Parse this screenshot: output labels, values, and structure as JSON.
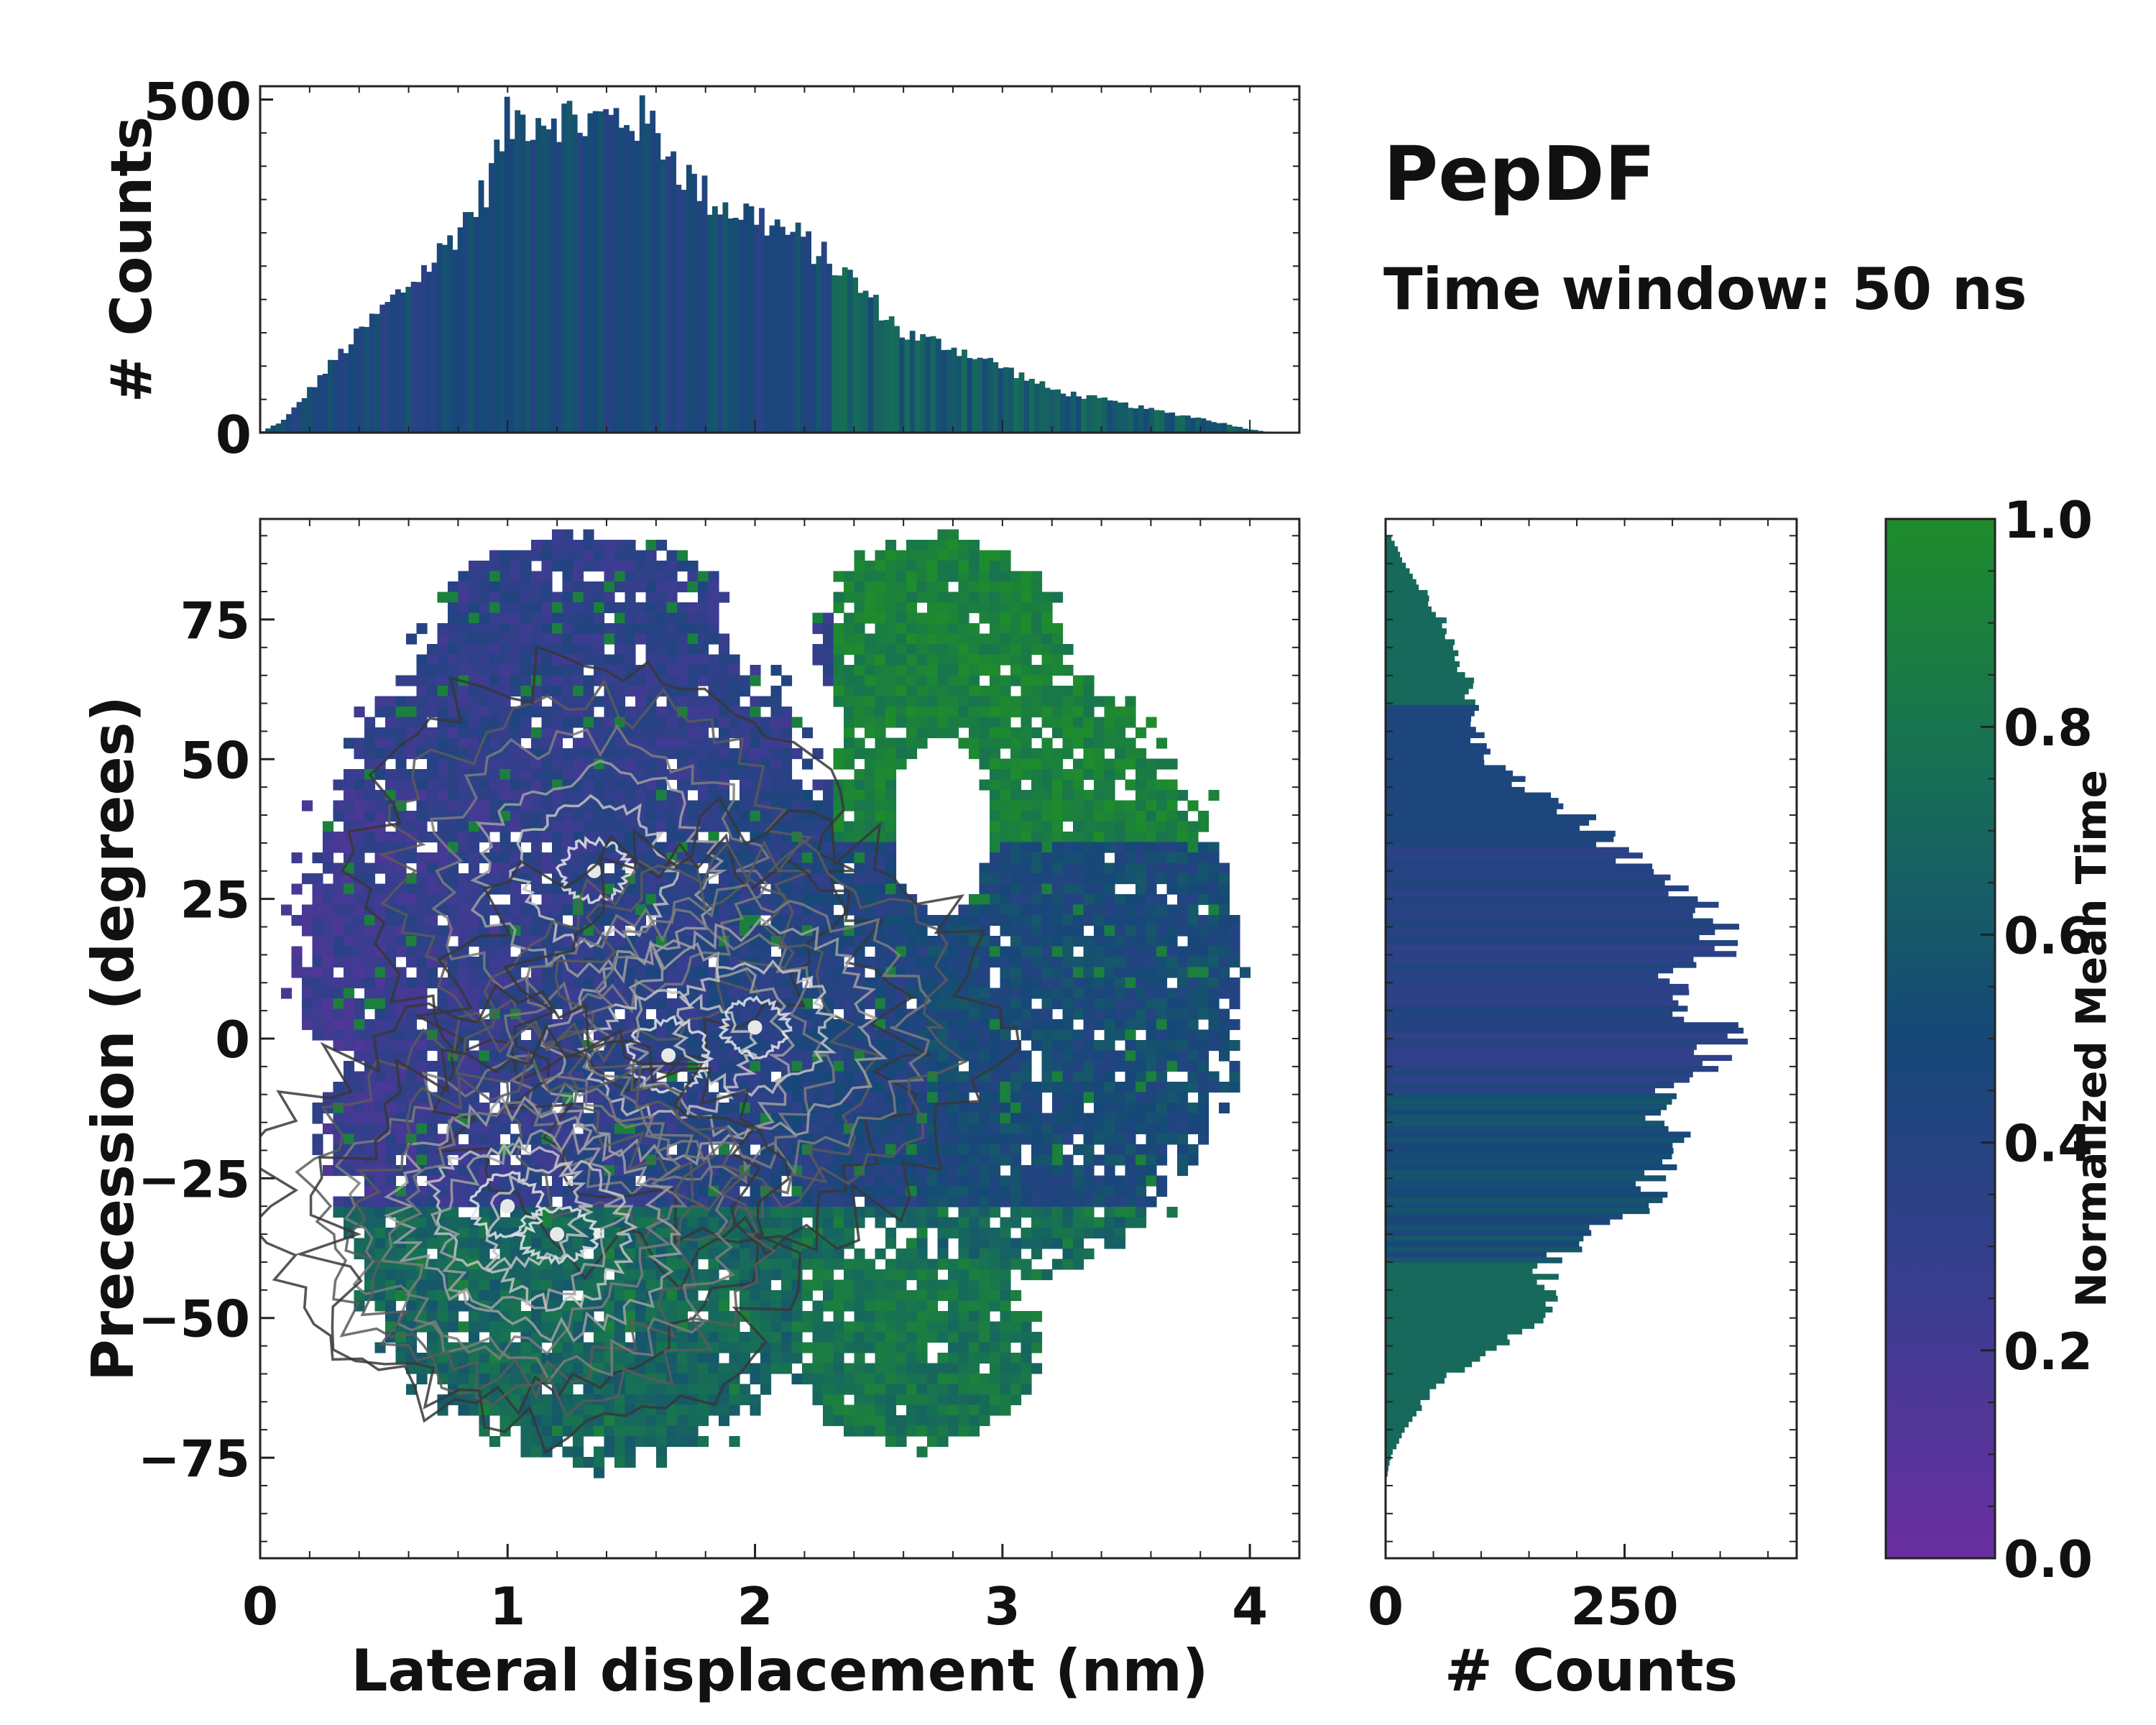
{
  "chart_data": {
    "type": "heatmap",
    "annotations": {
      "title": "PepDF",
      "subtitle": "Time window: 50 ns"
    },
    "colors": {
      "cmap_low": "#6a2ea0",
      "cmap_q1": "#3a3d90",
      "cmap_mid": "#164878",
      "cmap_q3": "#176e57",
      "cmap_high": "#1e8c2c",
      "contour_dark": "#222222",
      "contour_light": "#e8e8e8",
      "outline": "#000000"
    },
    "main": {
      "xlabel": "Lateral displacement (nm)",
      "ylabel": "Precession (degrees)",
      "xlim": [
        0,
        4.2
      ],
      "ylim": [
        -93,
        93
      ],
      "xticks": [
        0,
        1,
        2,
        3,
        4
      ],
      "yticks": [
        -75,
        -50,
        -25,
        0,
        25,
        50,
        75
      ],
      "xtick_labels": [
        "0",
        "1",
        "2",
        "3",
        "4"
      ],
      "ytick_labels": [
        "−75",
        "−50",
        "−25",
        "0",
        "25",
        "50",
        "75"
      ],
      "density_peaks": [
        {
          "x": 1.35,
          "y": 30
        },
        {
          "x": 1.65,
          "y": -3
        },
        {
          "x": 2.0,
          "y": 2
        },
        {
          "x": 1.0,
          "y": -30
        },
        {
          "x": 1.2,
          "y": -35
        }
      ]
    },
    "top_histogram": {
      "ylabel": "# Counts",
      "ylim": [
        0,
        520
      ],
      "yticks": [
        0,
        500
      ],
      "ytick_labels": [
        "0",
        "500"
      ],
      "x": [
        0.1,
        0.3,
        0.5,
        0.7,
        0.9,
        1.0,
        1.1,
        1.2,
        1.3,
        1.4,
        1.5,
        1.6,
        1.7,
        1.8,
        1.9,
        2.0,
        2.2,
        2.4,
        2.6,
        2.8,
        3.0,
        3.2,
        3.4,
        3.6,
        3.8,
        4.0,
        4.1
      ],
      "values": [
        20,
        110,
        190,
        260,
        360,
        470,
        480,
        485,
        470,
        475,
        480,
        460,
        400,
        360,
        340,
        330,
        290,
        230,
        150,
        130,
        100,
        65,
        50,
        35,
        22,
        5,
        0
      ]
    },
    "right_histogram": {
      "xlabel": "# Counts",
      "xlim": [
        0,
        430
      ],
      "xticks": [
        0,
        250
      ],
      "xtick_labels": [
        "0",
        "250"
      ],
      "y": [
        90,
        85,
        80,
        75,
        70,
        65,
        60,
        55,
        50,
        45,
        40,
        35,
        30,
        25,
        20,
        15,
        10,
        5,
        0,
        -5,
        -10,
        -15,
        -20,
        -25,
        -30,
        -35,
        -40,
        -45,
        -50,
        -55,
        -60,
        -65,
        -70,
        -75,
        -80
      ],
      "values": [
        5,
        20,
        40,
        60,
        75,
        85,
        90,
        95,
        105,
        150,
        205,
        235,
        275,
        330,
        355,
        340,
        305,
        320,
        365,
        330,
        285,
        300,
        320,
        290,
        270,
        220,
        170,
        170,
        165,
        130,
        70,
        40,
        20,
        5,
        0
      ]
    },
    "colorbar": {
      "label": "Normalized Mean Time",
      "range": [
        0.0,
        1.0
      ],
      "ticks": [
        0.0,
        0.2,
        0.4,
        0.6,
        0.8,
        1.0
      ],
      "tick_labels": [
        "0.0",
        "0.2",
        "0.4",
        "0.6",
        "0.8",
        "1.0"
      ]
    }
  }
}
